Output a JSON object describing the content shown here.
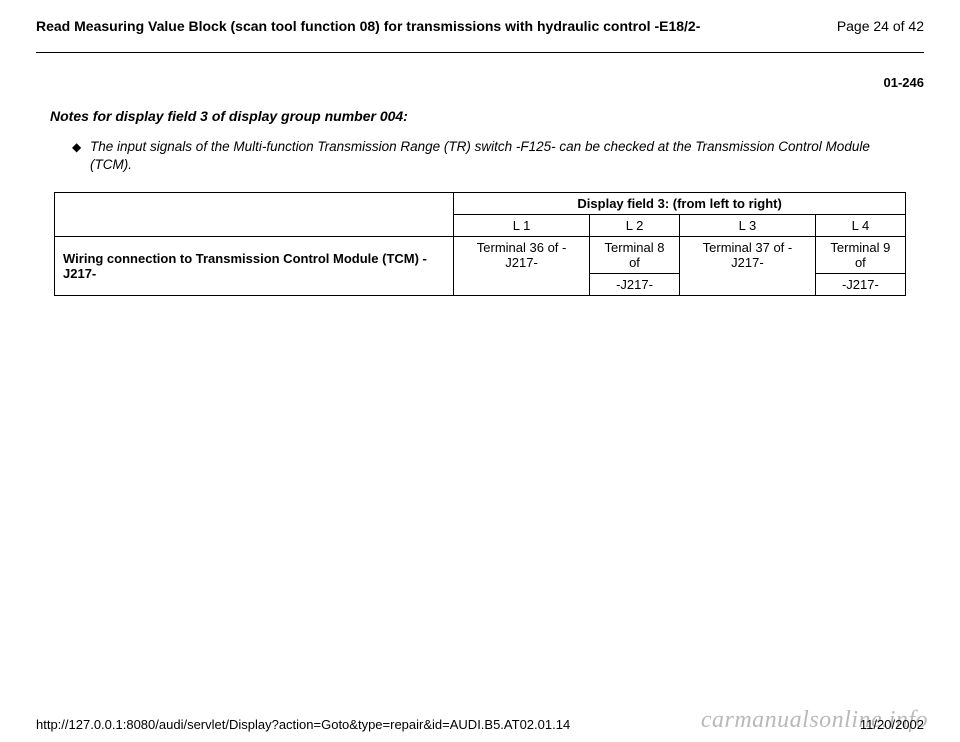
{
  "header": {
    "title": "Read Measuring Value Block (scan tool function 08) for transmissions with hydraulic control -E18/2-",
    "page_label": "Page 24 of 42"
  },
  "doc_number": "01-246",
  "notes_title": "Notes for display field 3 of display group number 004:",
  "bullet_text": "The input signals of the Multi-function Transmission Range (TR) switch -F125- can be checked at the Transmission Control Module (TCM).",
  "table": {
    "group_header": "Display field 3: (from left to right)",
    "col_labels": [
      "L 1",
      "L 2",
      "L 3",
      "L 4"
    ],
    "row_header": "Wiring connection to Transmission Control Module (TCM) -J217-",
    "cells_line1": [
      "Terminal 36 of -J217-",
      "Terminal 8 of",
      "Terminal 37 of -J217-",
      "Terminal 9 of"
    ],
    "cells_line2": [
      "",
      "-J217-",
      "",
      "-J217-"
    ]
  },
  "footer": {
    "url": "http://127.0.0.1:8080/audi/servlet/Display?action=Goto&type=repair&id=AUDI.B5.AT02.01.14",
    "date": "11/20/2002"
  },
  "watermark": "carmanualsonline.info"
}
